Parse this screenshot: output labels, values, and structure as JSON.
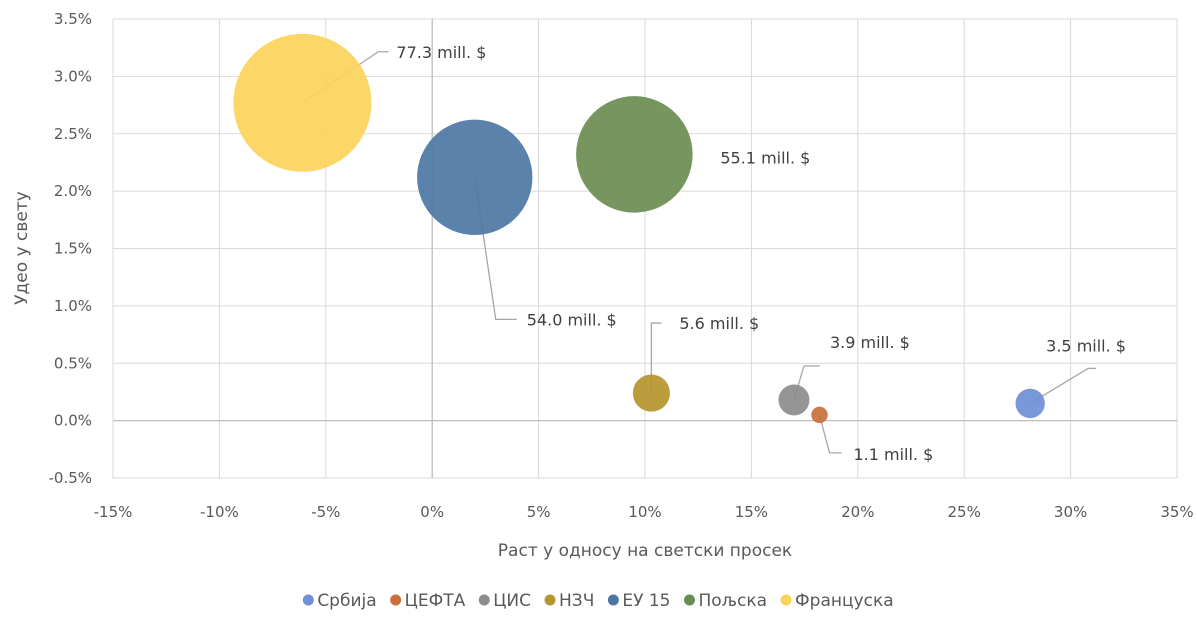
{
  "chart_data": {
    "type": "bubble",
    "title": "",
    "xlabel": "Раст у односу на светски просек",
    "ylabel": "Удео у свету",
    "xlim": [
      -15,
      35
    ],
    "ylim": [
      -0.5,
      3.5
    ],
    "x_ticks": [
      -15,
      -10,
      -5,
      0,
      5,
      10,
      15,
      20,
      25,
      30,
      35
    ],
    "y_ticks": [
      -0.5,
      0.0,
      0.5,
      1.0,
      1.5,
      2.0,
      2.5,
      3.0,
      3.5
    ],
    "x_tick_labels": [
      "-15%",
      "-10%",
      "-5%",
      "0%",
      "5%",
      "10%",
      "15%",
      "20%",
      "25%",
      "30%",
      "35%"
    ],
    "y_tick_labels": [
      "-0.5%",
      "0.0%",
      "0.5%",
      "1.0%",
      "1.5%",
      "2.0%",
      "2.5%",
      "3.0%",
      "3.5%"
    ],
    "grid": true,
    "legend_position": "bottom",
    "series": [
      {
        "name": "Србија",
        "x": 28.1,
        "y": 0.15,
        "size": 3.5,
        "label": "3.5 mill. $",
        "color": "#6f8fd6"
      },
      {
        "name": "ЦЕФТА",
        "x": 18.2,
        "y": 0.05,
        "size": 1.1,
        "label": "1.1 mill. $",
        "color": "#c8703c"
      },
      {
        "name": "ЦИС",
        "x": 17.0,
        "y": 0.18,
        "size": 3.9,
        "label": "3.9 mill. $",
        "color": "#8c8c8c"
      },
      {
        "name": "НЗЧ",
        "x": 10.3,
        "y": 0.24,
        "size": 5.6,
        "label": "5.6 mill. $",
        "color": "#b5952e"
      },
      {
        "name": "ЕУ 15",
        "x": 2.0,
        "y": 2.12,
        "size": 54.0,
        "label": "54.0 mill. $",
        "color": "#4d77a3"
      },
      {
        "name": "Пољска",
        "x": 9.5,
        "y": 2.32,
        "size": 55.1,
        "label": "55.1 mill. $",
        "color": "#6a8c51"
      },
      {
        "name": "Француска",
        "x": -6.1,
        "y": 2.77,
        "size": 77.3,
        "label": "77.3 mill. $",
        "color": "#fcd25a"
      }
    ]
  }
}
